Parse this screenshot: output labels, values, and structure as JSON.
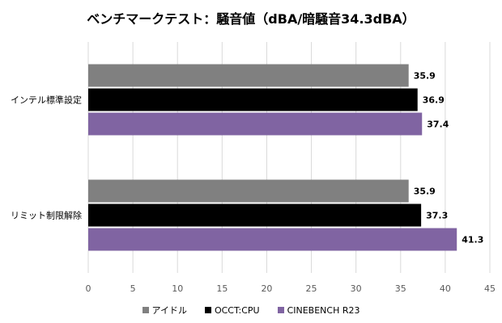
{
  "chart_data": {
    "type": "bar",
    "orientation": "horizontal",
    "title": "ベンチマークテスト：騒音値（dBA/暗騒音34.3dBA）",
    "categories": [
      "インテル標準設定",
      "リミット制限解除"
    ],
    "series": [
      {
        "name": "アイドル",
        "values": [
          35.9,
          35.9
        ],
        "color": "#808080"
      },
      {
        "name": "OCCT:CPU",
        "values": [
          36.9,
          37.3
        ],
        "color": "#000000"
      },
      {
        "name": "CINEBENCH R23",
        "values": [
          37.4,
          41.3
        ],
        "color": "#8064A2"
      }
    ],
    "xlim": [
      0,
      45
    ],
    "xticks": [
      "0",
      "5",
      "10",
      "15",
      "20",
      "25",
      "30",
      "35",
      "40",
      "45"
    ],
    "data_labels": true,
    "grid": "vertical",
    "legend_position": "bottom"
  }
}
